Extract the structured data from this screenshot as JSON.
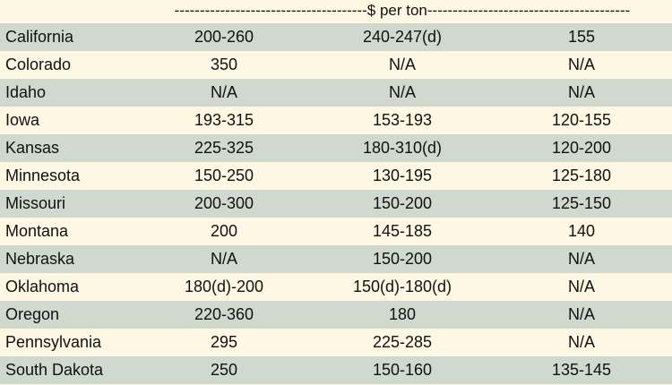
{
  "header": {
    "text": "--------------------------------------$ per ton----------------------------------------"
  },
  "rows": [
    {
      "state": "California",
      "a": "200-260",
      "b": "240-247(d)",
      "c": "155"
    },
    {
      "state": "Colorado",
      "a": "350",
      "b": "N/A",
      "c": "N/A"
    },
    {
      "state": "Idaho",
      "a": "N/A",
      "b": "N/A",
      "c": "N/A"
    },
    {
      "state": "Iowa",
      "a": "193-315",
      "b": "153-193",
      "c": "120-155"
    },
    {
      "state": "Kansas",
      "a": "225-325",
      "b": "180-310(d)",
      "c": "120-200"
    },
    {
      "state": "Minnesota",
      "a": "150-250",
      "b": "130-195",
      "c": "125-180"
    },
    {
      "state": "Missouri",
      "a": "200-300",
      "b": "150-200",
      "c": "125-150"
    },
    {
      "state": "Montana",
      "a": "200",
      "b": "145-185",
      "c": "140"
    },
    {
      "state": "Nebraska",
      "a": "N/A",
      "b": "150-200",
      "c": "N/A"
    },
    {
      "state": "Oklahoma",
      "a": "180(d)-200",
      "b": "150(d)-180(d)",
      "c": "N/A"
    },
    {
      "state": "Oregon",
      "a": "220-360",
      "b": "180",
      "c": "N/A"
    },
    {
      "state": "Pennsylvania",
      "a": "295",
      "b": "225-285",
      "c": "N/A"
    },
    {
      "state": "South Dakota",
      "a": "250",
      "b": "150-160",
      "c": "135-145"
    }
  ],
  "colors": {
    "shade_row": "#cfd9ce",
    "plain_row": "#fdf7e3"
  }
}
